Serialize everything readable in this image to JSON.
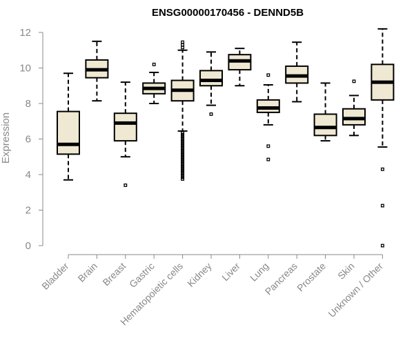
{
  "chart_data": {
    "type": "boxplot",
    "title": "ENSG00000170456 - DENND5B",
    "ylabel": "Expression",
    "xlabel": "",
    "ylim": [
      0,
      12
    ],
    "yticks": [
      0,
      2,
      4,
      6,
      8,
      10,
      12
    ],
    "grid": false,
    "box_fill": "#EFE8D2",
    "categories": [
      "Bladder",
      "Brain",
      "Breast",
      "Gastric",
      "Hematopoietic cells",
      "Kidney",
      "Liver",
      "Lung",
      "Pancreas",
      "Prostate",
      "Skin",
      "Unknown / Other"
    ],
    "boxes": [
      {
        "min": 3.7,
        "q1": 5.15,
        "median": 5.7,
        "q3": 7.55,
        "max": 9.7,
        "outliers": []
      },
      {
        "min": 8.15,
        "q1": 9.45,
        "median": 9.9,
        "q3": 10.45,
        "max": 11.5,
        "outliers": []
      },
      {
        "min": 5.0,
        "q1": 5.9,
        "median": 6.9,
        "q3": 7.45,
        "max": 9.2,
        "outliers": [
          3.4
        ]
      },
      {
        "min": 8.0,
        "q1": 8.55,
        "median": 8.85,
        "q3": 9.15,
        "max": 9.75,
        "outliers": [
          10.2
        ]
      },
      {
        "min": 6.45,
        "q1": 8.15,
        "median": 8.75,
        "q3": 9.3,
        "max": 11.0,
        "outliers": [
          3.75,
          3.85,
          3.95,
          4.05,
          4.15,
          4.25,
          4.35,
          4.45,
          4.55,
          4.65,
          4.75,
          4.85,
          4.95,
          5.05,
          5.15,
          5.25,
          5.35,
          5.45,
          5.55,
          5.65,
          5.75,
          5.85,
          5.95,
          6.05,
          6.15,
          6.25,
          6.35,
          11.15,
          11.3,
          11.45
        ]
      },
      {
        "min": 7.9,
        "q1": 9.0,
        "median": 9.3,
        "q3": 9.85,
        "max": 10.9,
        "outliers": [
          7.4
        ]
      },
      {
        "min": 9.0,
        "q1": 9.9,
        "median": 10.4,
        "q3": 10.75,
        "max": 11.1,
        "outliers": []
      },
      {
        "min": 6.8,
        "q1": 7.5,
        "median": 7.75,
        "q3": 8.2,
        "max": 9.05,
        "outliers": [
          4.85,
          5.6,
          9.6
        ]
      },
      {
        "min": 8.1,
        "q1": 9.15,
        "median": 9.55,
        "q3": 10.1,
        "max": 11.45,
        "outliers": []
      },
      {
        "min": 5.9,
        "q1": 6.2,
        "median": 6.65,
        "q3": 7.4,
        "max": 9.15,
        "outliers": []
      },
      {
        "min": 6.2,
        "q1": 6.8,
        "median": 7.15,
        "q3": 7.7,
        "max": 8.45,
        "outliers": [
          9.25
        ]
      },
      {
        "min": 5.55,
        "q1": 8.2,
        "median": 9.2,
        "q3": 10.2,
        "max": 12.2,
        "outliers": [
          0.0,
          2.25,
          4.3
        ]
      }
    ]
  }
}
